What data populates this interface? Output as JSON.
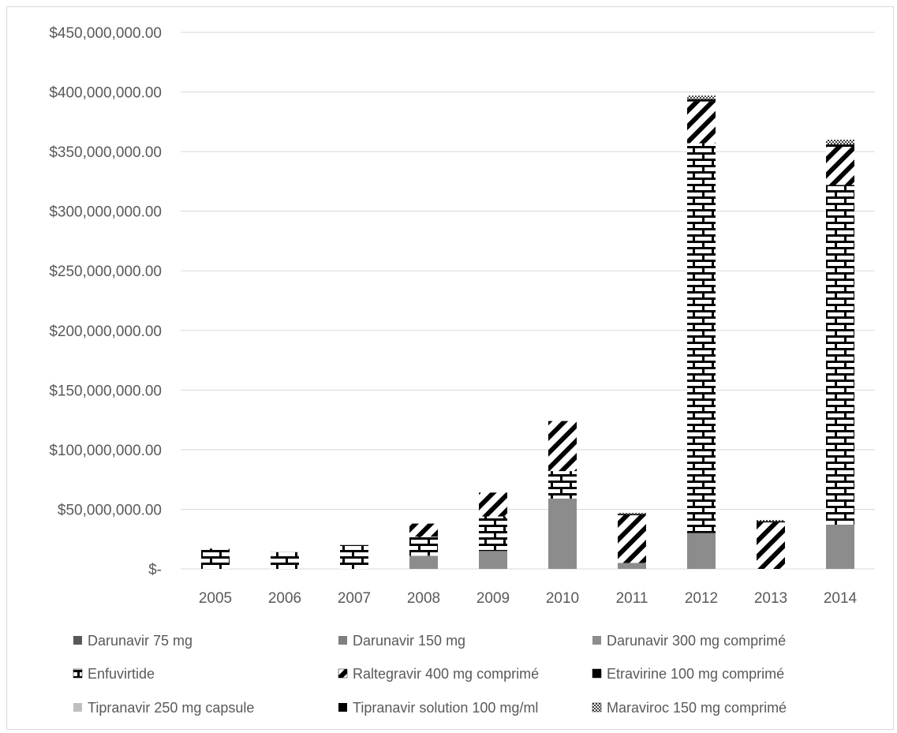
{
  "chart_data": {
    "type": "bar",
    "stacked": true,
    "categories": [
      "2005",
      "2006",
      "2007",
      "2008",
      "2009",
      "2010",
      "2011",
      "2012",
      "2013",
      "2014"
    ],
    "ylim": [
      0,
      450000000
    ],
    "yticks": [
      0,
      50000000,
      100000000,
      150000000,
      200000000,
      250000000,
      300000000,
      350000000,
      400000000,
      450000000
    ],
    "ytick_labels": [
      "$-",
      "$50,000,000.00",
      "$100,000,000.00",
      "$150,000,000.00",
      "$200,000,000.00",
      "$250,000,000.00",
      "$300,000,000.00",
      "$350,000,000.00",
      "$400,000,000.00",
      "$450,000,000.00"
    ],
    "grid": true,
    "legend_position": "bottom",
    "series": [
      {
        "name": "Darunavir 75 mg",
        "color": "#595959",
        "pattern": "solid",
        "values": [
          0,
          0,
          0,
          0,
          0,
          0,
          0,
          0,
          0,
          0
        ]
      },
      {
        "name": "Darunavir 150 mg",
        "color": "#7f7f7f",
        "pattern": "solid",
        "values": [
          0,
          0,
          0,
          0,
          0,
          0,
          0,
          0,
          0,
          0
        ]
      },
      {
        "name": "Darunavir 300 mg comprimé",
        "color": "#8c8c8c",
        "pattern": "solid",
        "values": [
          0,
          0,
          0,
          11000000,
          15000000,
          59000000,
          5000000,
          30000000,
          0,
          37000000
        ]
      },
      {
        "name": "Enfuvirtide",
        "color": "#000000",
        "pattern": "brick",
        "values": [
          17000000,
          14000000,
          20000000,
          16000000,
          29000000,
          23000000,
          0,
          327000000,
          0,
          285000000
        ]
      },
      {
        "name": "Raltegravir 400 mg comprimé",
        "color": "#000000",
        "pattern": "diagonal",
        "values": [
          0,
          0,
          0,
          11000000,
          20000000,
          42000000,
          40000000,
          35000000,
          39000000,
          32000000
        ]
      },
      {
        "name": "Etravirine 100 mg comprimé",
        "color": "#000000",
        "pattern": "solid-thin",
        "values": [
          0,
          0,
          0,
          0,
          0,
          0,
          1000000,
          2000000,
          1000000,
          2000000
        ]
      },
      {
        "name": "Tipranavir 250 mg capsule",
        "color": "#bfbfbf",
        "pattern": "solid",
        "values": [
          0,
          0,
          0,
          0,
          0,
          0,
          0,
          0,
          0,
          0
        ]
      },
      {
        "name": "Tipranavir solution 100 mg/ml",
        "color": "#000000",
        "pattern": "solid",
        "values": [
          0,
          0,
          0,
          0,
          0,
          0,
          0,
          0,
          0,
          0
        ]
      },
      {
        "name": "Maraviroc 150 mg comprimé",
        "color": "#404040",
        "pattern": "check",
        "values": [
          0,
          0,
          0,
          0,
          0,
          0,
          1000000,
          3000000,
          1000000,
          4000000
        ]
      }
    ]
  }
}
